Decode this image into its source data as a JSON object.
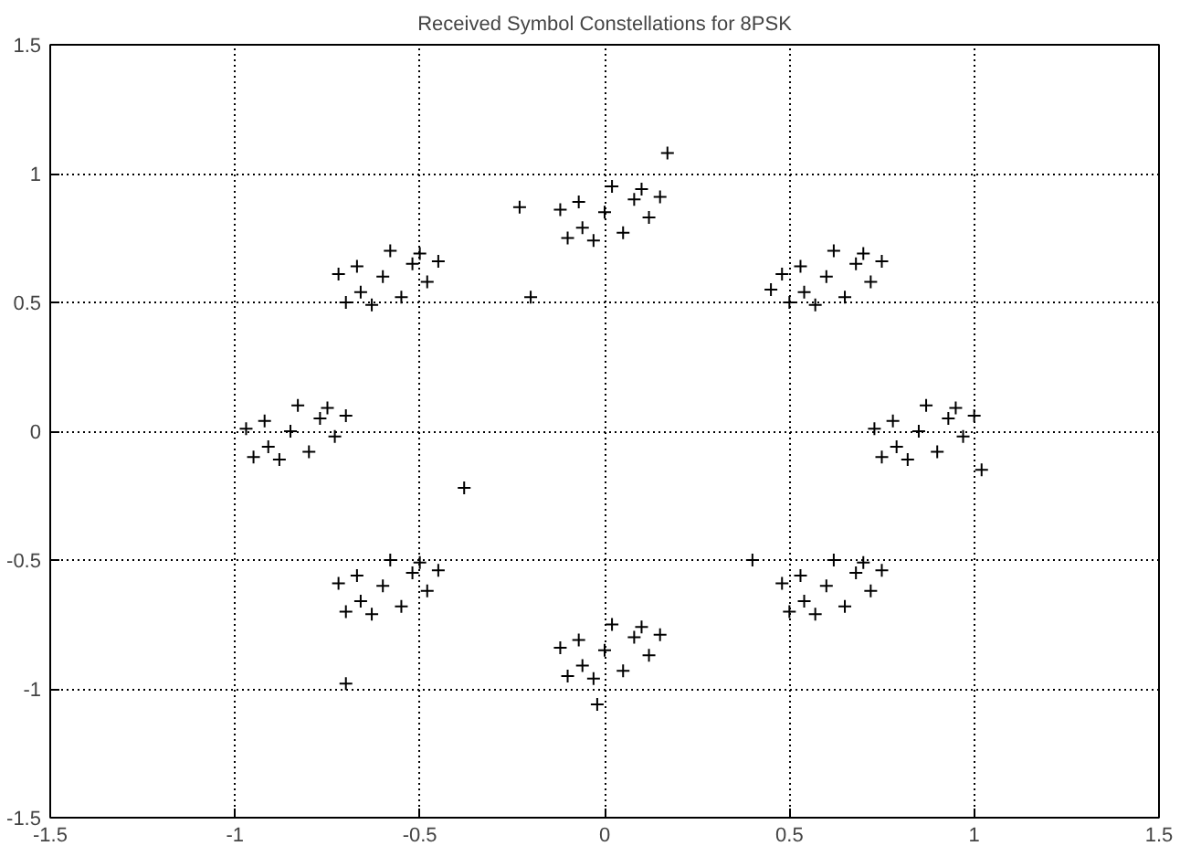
{
  "chart_data": {
    "type": "scatter",
    "title": "Received Symbol Constellations for 8PSK",
    "x": [
      0.85,
      0.93,
      0.78,
      0.9,
      0.79,
      0.97,
      0.73,
      0.87,
      0.82,
      0.95,
      0.75,
      1.0,
      0.6,
      0.68,
      0.53,
      0.65,
      0.54,
      0.72,
      0.48,
      0.62,
      0.57,
      0.7,
      0.5,
      0.75,
      0,
      0.08,
      -0.07,
      0.05,
      -0.06,
      0.12,
      -0.12,
      0.02,
      -0.03,
      0.1,
      -0.1,
      0.15,
      -0.6,
      -0.52,
      -0.67,
      -0.55,
      -0.66,
      -0.48,
      -0.72,
      -0.58,
      -0.63,
      -0.5,
      -0.7,
      -0.45,
      -0.85,
      -0.77,
      -0.92,
      -0.8,
      -0.91,
      -0.73,
      -0.97,
      -0.83,
      -0.88,
      -0.75,
      -0.95,
      -0.7,
      -0.6,
      -0.52,
      -0.67,
      -0.55,
      -0.66,
      -0.48,
      -0.72,
      -0.58,
      -0.63,
      -0.5,
      -0.7,
      -0.45,
      0,
      0.08,
      -0.07,
      0.05,
      -0.06,
      0.12,
      -0.12,
      0.02,
      -0.03,
      0.1,
      -0.1,
      0.15,
      0.6,
      0.68,
      0.53,
      0.65,
      0.54,
      0.72,
      0.48,
      0.62,
      0.57,
      0.7,
      0.5,
      0.75,
      -0.23,
      -0.2,
      0.17,
      0.45,
      1.02,
      -0.7,
      -0.38,
      0.4,
      -0.02
    ],
    "values": [
      0,
      0.05,
      0.04,
      -0.08,
      -0.06,
      -0.02,
      0.01,
      0.1,
      -0.11,
      0.09,
      -0.1,
      0.06,
      0.6,
      0.65,
      0.64,
      0.52,
      0.54,
      0.58,
      0.61,
      0.7,
      0.49,
      0.69,
      0.5,
      0.66,
      0.85,
      0.9,
      0.89,
      0.77,
      0.79,
      0.83,
      0.86,
      0.95,
      0.74,
      0.94,
      0.75,
      0.91,
      0.6,
      0.65,
      0.64,
      0.52,
      0.54,
      0.58,
      0.61,
      0.7,
      0.49,
      0.69,
      0.5,
      0.66,
      0,
      0.05,
      0.04,
      -0.08,
      -0.06,
      -0.02,
      0.01,
      0.1,
      -0.11,
      0.09,
      -0.1,
      0.06,
      -0.6,
      -0.55,
      -0.56,
      -0.68,
      -0.66,
      -0.62,
      -0.59,
      -0.5,
      -0.71,
      -0.51,
      -0.7,
      -0.54,
      -0.85,
      -0.8,
      -0.81,
      -0.93,
      -0.91,
      -0.87,
      -0.84,
      -0.75,
      -0.96,
      -0.76,
      -0.95,
      -0.79,
      -0.6,
      -0.55,
      -0.56,
      -0.68,
      -0.66,
      -0.62,
      -0.59,
      -0.5,
      -0.71,
      -0.51,
      -0.7,
      -0.54,
      0.87,
      0.52,
      1.08,
      0.55,
      -0.15,
      -0.98,
      -0.22,
      -0.5,
      -1.06
    ],
    "color": "#000000",
    "marker": "cross",
    "xlim": [
      -1.5,
      1.5
    ],
    "ylim": [
      -1.5,
      1.5
    ],
    "xticks": [
      -1.5,
      -1,
      -0.5,
      0,
      0.5,
      1,
      1.5
    ],
    "yticks": [
      -1.5,
      -1,
      -0.5,
      0,
      0.5,
      1,
      1.5
    ],
    "grid": true
  }
}
